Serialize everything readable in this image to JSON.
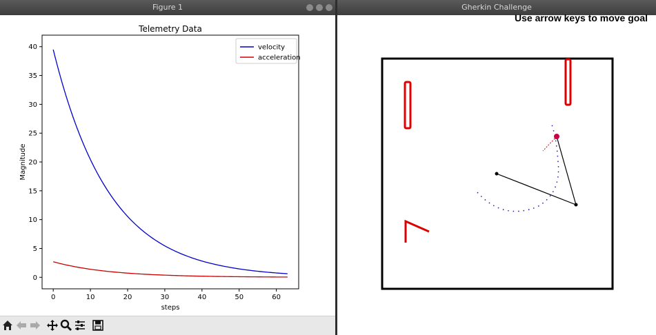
{
  "left_window": {
    "title": "Figure 1"
  },
  "right_window": {
    "title": "Gherkin Challenge",
    "hint": "Use arrow keys to move goal"
  },
  "toolbar": {
    "buttons": [
      "home-icon",
      "back-arrow-icon",
      "forward-arrow-icon",
      "pan-move-icon",
      "zoom-magnifier-icon",
      "configure-subplots-icon",
      "save-floppy-icon"
    ]
  },
  "colors": {
    "velocity": "#0000cc",
    "acceleration": "#cc0000",
    "obstacle": "#dd0000",
    "arm": "#000000",
    "trail": "#1a1aaa",
    "goal": "#cc0044"
  },
  "chart_data": {
    "type": "line",
    "title": "Telemetry Data",
    "xlabel": "steps",
    "ylabel": "Magnitude",
    "xlim": [
      -3,
      66
    ],
    "ylim": [
      -2,
      42
    ],
    "xticks": [
      0,
      10,
      20,
      30,
      40,
      50,
      60
    ],
    "yticks": [
      0,
      5,
      10,
      15,
      20,
      25,
      30,
      35,
      40
    ],
    "legend_position": "top-right",
    "grid": false,
    "series": [
      {
        "name": "velocity",
        "color": "#0000cc",
        "x_range": [
          0,
          63
        ],
        "start": 39.5,
        "decay": 0.066
      },
      {
        "name": "acceleration",
        "color": "#cc0000",
        "x_range": [
          0,
          63
        ],
        "start": 2.7,
        "decay": 0.066
      }
    ],
    "sample_points": {
      "velocity": [
        [
          0,
          39.5
        ],
        [
          10,
          20.3
        ],
        [
          20,
          10.5
        ],
        [
          30,
          5.4
        ],
        [
          40,
          2.8
        ],
        [
          50,
          1.4
        ],
        [
          63,
          0.6
        ]
      ],
      "acceleration": [
        [
          0,
          2.7
        ],
        [
          10,
          1.4
        ],
        [
          20,
          0.7
        ],
        [
          30,
          0.4
        ],
        [
          40,
          0.2
        ],
        [
          50,
          0.1
        ],
        [
          63,
          0.05
        ]
      ]
    }
  }
}
